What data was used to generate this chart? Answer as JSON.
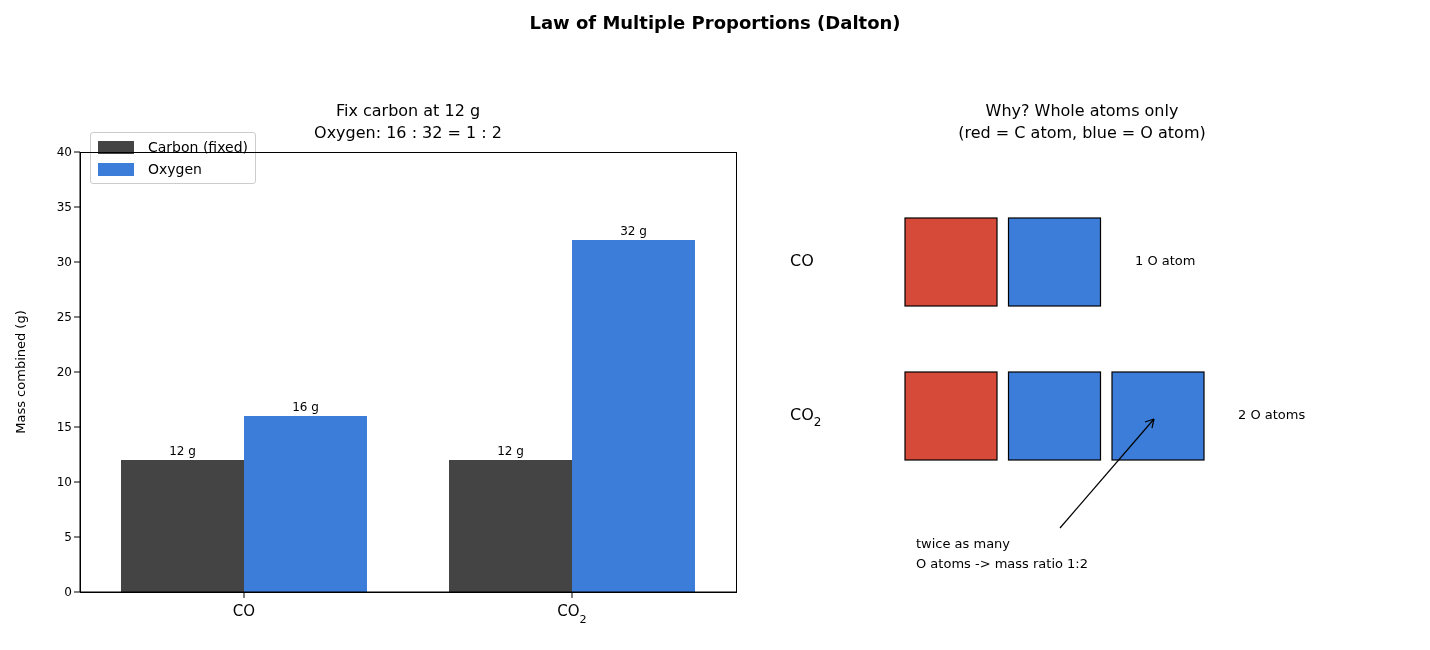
{
  "chart_data": [
    {
      "type": "bar",
      "title": "Law of Multiple Proportions (Dalton)",
      "subtitle": "Fix carbon at 12 g\nOxygen: 16 : 32 = 1 : 2",
      "ylabel": "Mass combined (g)",
      "categories": [
        "CO",
        "CO$_{2}$"
      ],
      "series": [
        {
          "name": "Carbon (fixed)",
          "color": "#444444",
          "values": [
            12,
            12
          ],
          "value_labels": [
            "12 g",
            "12 g"
          ]
        },
        {
          "name": "Oxygen",
          "color": "#3b7dd8",
          "values": [
            16,
            32
          ],
          "value_labels": [
            "16 g",
            "32 g"
          ]
        }
      ],
      "ylim": [
        0,
        40
      ],
      "yticks": [
        0,
        5,
        10,
        15,
        20,
        25,
        30,
        35,
        40
      ],
      "legend": "top left"
    },
    {
      "type": "other",
      "title": "Why? Whole atoms only\n(red = C atom, blue = O atom)",
      "annotations": [
        "CO",
        "CO$_{2}$",
        "1 O atom",
        "2 O atoms",
        "twice as many\nO atoms  -> mass ratio 1:2"
      ]
    }
  ]
}
